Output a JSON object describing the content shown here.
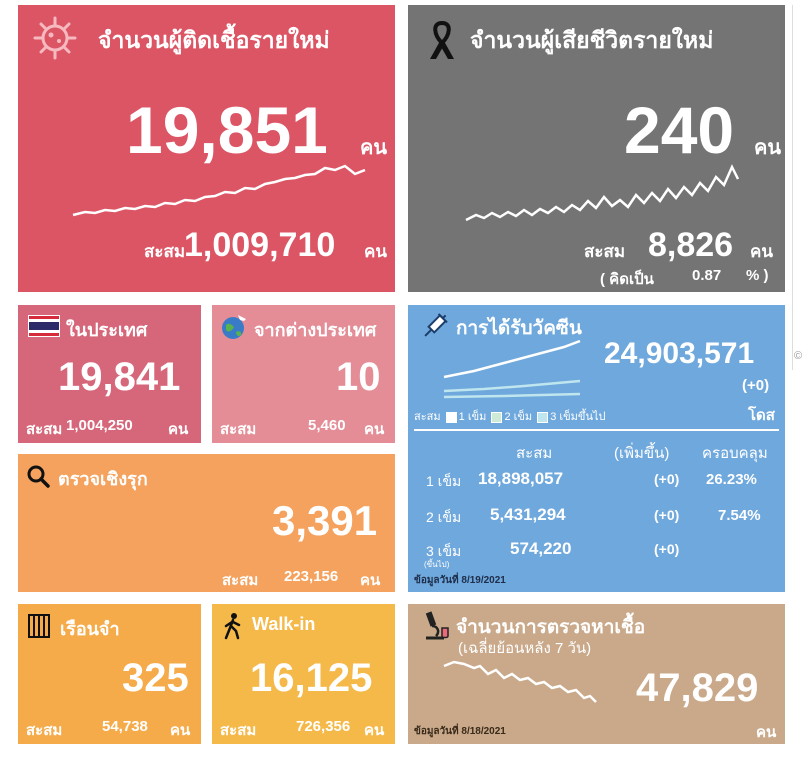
{
  "new_cases": {
    "title": "จำนวนผู้ติดเชื้อรายใหม่",
    "value": "19,851",
    "unit": "คน",
    "cumulative_label": "สะสม",
    "cumulative_value": "1,009,710",
    "cumulative_unit": "คน",
    "color": "#dc5565",
    "icon": "virus-icon"
  },
  "new_deaths": {
    "title": "จำนวนผู้เสียชีวิตรายใหม่",
    "value": "240",
    "unit": "คน",
    "cumulative_label": "สะสม",
    "cumulative_value": "8,826",
    "cumulative_unit": "คน",
    "ratio_open": "( คิดเป็น",
    "ratio_value": "0.87",
    "ratio_close": "% )",
    "color": "#747474",
    "icon": "ribbon-icon"
  },
  "domestic": {
    "title": "ในประเทศ",
    "value": "19,841",
    "cumulative_label": "สะสม",
    "cumulative_value": "1,004,250",
    "cumulative_unit": "คน",
    "color": "#d6677a",
    "icon": "thai-flag-icon"
  },
  "imported": {
    "title": "จากต่างประเทศ",
    "value": "10",
    "cumulative_label": "สะสม",
    "cumulative_value": "5,460",
    "cumulative_unit": "คน",
    "color": "#e48d97",
    "icon": "globe-plane-icon"
  },
  "active_search": {
    "title": "ตรวจเชิงรุก",
    "value": "3,391",
    "cumulative_label": "สะสม",
    "cumulative_value": "223,156",
    "cumulative_unit": "คน",
    "color": "#f4a25e",
    "icon": "magnifier-icon"
  },
  "prison": {
    "title": "เรือนจำ",
    "value": "325",
    "cumulative_label": "สะสม",
    "cumulative_value": "54,738",
    "cumulative_unit": "คน",
    "color": "#f5ab4a",
    "icon": "prison-icon"
  },
  "walkin": {
    "title": "Walk-in",
    "value": "16,125",
    "cumulative_label": "สะสม",
    "cumulative_value": "726,356",
    "cumulative_unit": "คน",
    "color": "#f5b94a",
    "icon": "walking-person-icon"
  },
  "vaccine": {
    "title": "การได้รับวัคซีน",
    "total": "24,903,571",
    "change": "(+0)",
    "unit": "โดส",
    "legend_prefix": "สะสม",
    "legend": [
      "1 เข็ม",
      "2 เข็ม",
      "3 เข็มขึ้นไป"
    ],
    "headers": [
      "สะสม",
      "(เพิ่มขึ้น)",
      "ครอบคลุม"
    ],
    "rows": [
      {
        "dose": "1 เข็ม",
        "cumulative": "18,898,057",
        "increase": "(+0)",
        "coverage": "26.23%"
      },
      {
        "dose": "2 เข็ม",
        "cumulative": "5,431,294",
        "increase": "(+0)",
        "coverage": "7.54%"
      },
      {
        "dose": "3 เข็ม",
        "cumulative": "574,220",
        "increase": "(+0)",
        "coverage": ""
      }
    ],
    "dose3_note": "(ขึ้นไป)",
    "data_date": "ข้อมูลวันที่ 8/19/2021",
    "color": "#6fa8dc",
    "icon": "syringe-icon"
  },
  "tests": {
    "title": "จำนวนการตรวจหาเชื้อ",
    "subtitle": "(เฉลี่ยย้อนหลัง 7 วัน)",
    "value": "47,829",
    "unit": "คน",
    "data_date": "ข้อมูลวันที่ 8/18/2021",
    "color": "#c9a98a",
    "icon": "microscope-icon"
  },
  "side_marker": "©"
}
